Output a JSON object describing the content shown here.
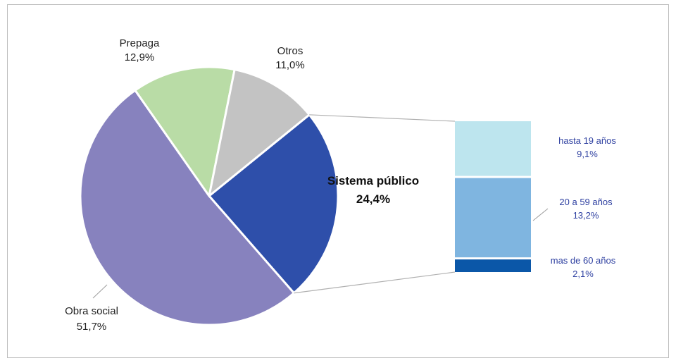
{
  "chart_data": {
    "type": "pie",
    "title": "",
    "slices": [
      {
        "label": "Sistema público",
        "value_label": "24,4%",
        "value": 24.4,
        "color": "#2e4faa"
      },
      {
        "label": "Obra social",
        "value_label": "51,7%",
        "value": 51.7,
        "color": "#8782be"
      },
      {
        "label": "Prepaga",
        "value_label": "12,9%",
        "value": 12.9,
        "color": "#b9dca6"
      },
      {
        "label": "Otros",
        "value_label": "11,0%",
        "value": 11.0,
        "color": "#c3c3c3"
      }
    ],
    "breakdown": {
      "of": "Sistema público",
      "type": "stacked-bar",
      "segments": [
        {
          "label": "hasta 19 años",
          "value_label": "9,1%",
          "value": 9.1,
          "color": "#bde5ee"
        },
        {
          "label": "20 a 59 años",
          "value_label": "13,2%",
          "value": 13.2,
          "color": "#7fb5e0"
        },
        {
          "label": "mas de 60 años",
          "value_label": "2,1%",
          "value": 2.1,
          "color": "#0b57a8"
        }
      ]
    }
  }
}
